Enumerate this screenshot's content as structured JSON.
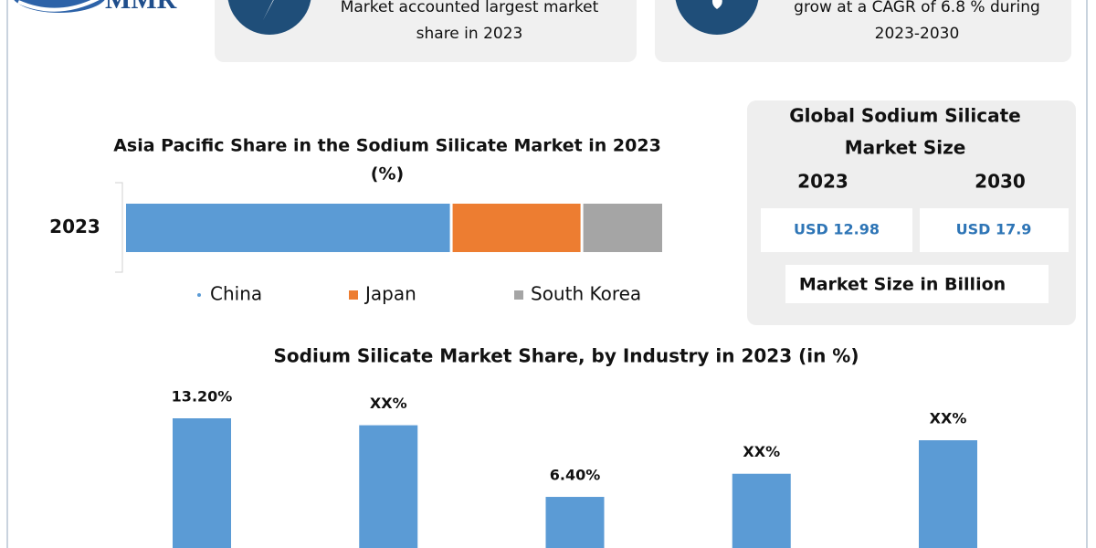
{
  "logo": "MMR",
  "cards": [
    {
      "lines": [
        "Market accounted largest market",
        "share in 2023"
      ]
    },
    {
      "lines": [
        "grow at a CAGR of 6.8 % during",
        "2023-2030"
      ]
    }
  ],
  "market_size": {
    "title_lines": [
      "Global Sodium Silicate",
      "Market Size"
    ],
    "years": [
      "2023",
      "2030"
    ],
    "values": [
      "USD 12.98",
      "USD 17.9"
    ],
    "unit_note": "Market Size in Billion"
  },
  "chart_data": [
    {
      "type": "hbar",
      "title_lines": [
        "Asia Pacific Share in the Sodium Silicate Market in 2023",
        "(%)"
      ],
      "categories": [
        "2023"
      ],
      "series": [
        {
          "name": "China",
          "color": "#5b9bd5",
          "values": [
            60
          ]
        },
        {
          "name": "Japan",
          "color": "#ed7d31",
          "values": [
            24
          ]
        },
        {
          "name": "South Korea",
          "color": "#a5a5a5",
          "values": [
            15
          ]
        }
      ]
    },
    {
      "type": "bar",
      "title": "Sodium Silicate Market Share, by Industry in 2023 (in %)",
      "categories": [
        null,
        null,
        null,
        null,
        null
      ],
      "values": [
        13.2,
        12.6,
        6.4,
        8.4,
        11.3
      ],
      "value_labels": [
        "13.20%",
        "XX%",
        "6.40%",
        "XX%",
        "XX%"
      ],
      "color": "#5b9bd5"
    }
  ]
}
